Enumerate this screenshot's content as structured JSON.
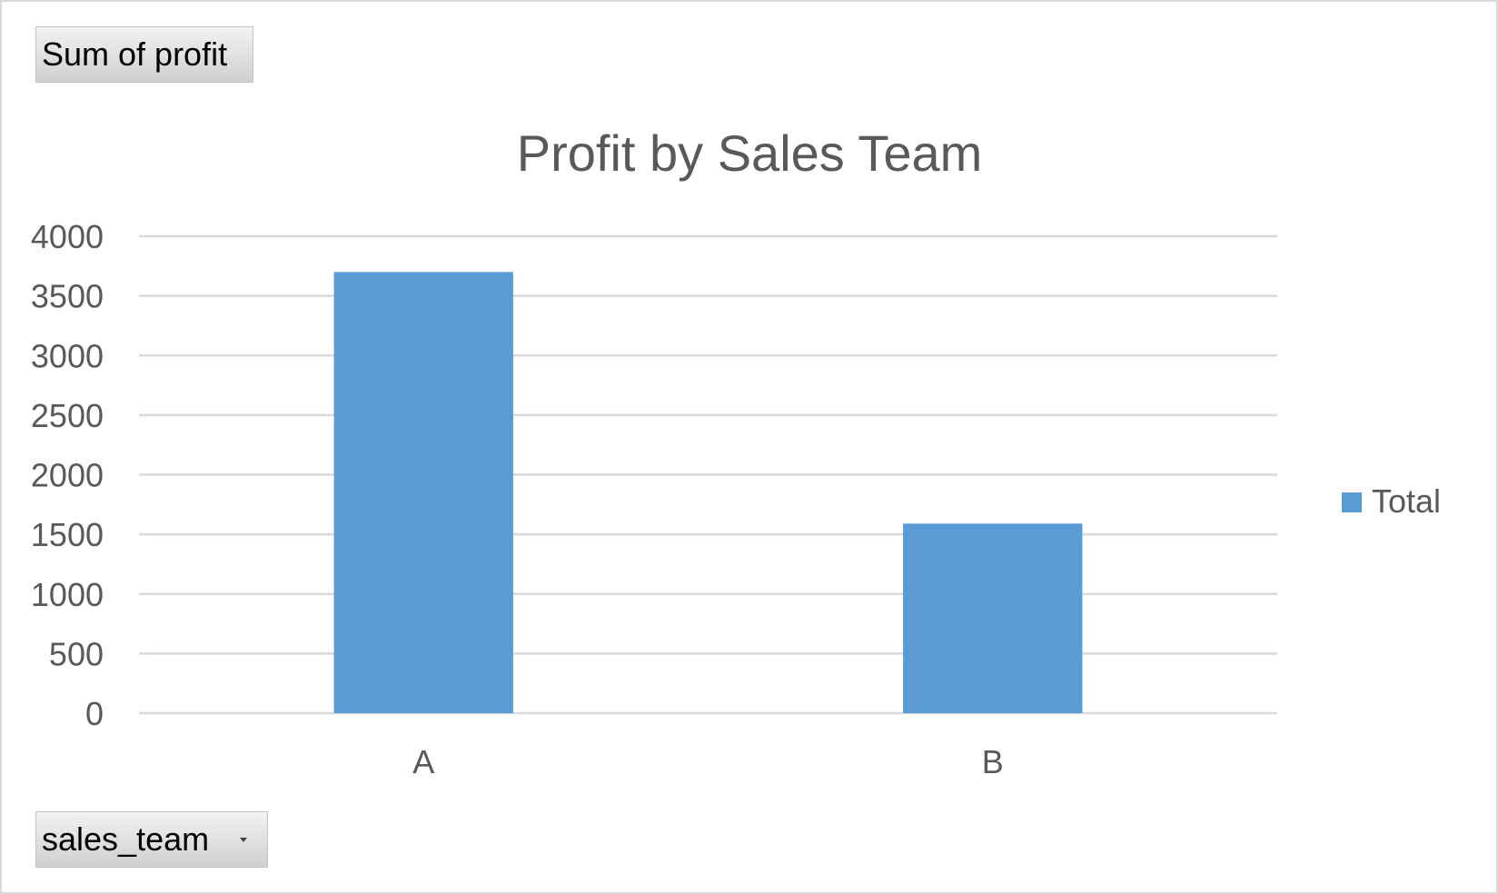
{
  "value_field_button": {
    "label": "Sum of profit"
  },
  "axis_field_button": {
    "label": "sales_team",
    "icon": "chevron-down-icon"
  },
  "colors": {
    "bar": "#5b9bd5",
    "gridline": "#d9d9d9",
    "text": "#595959"
  },
  "chart_data": {
    "type": "bar",
    "title": "Profit by Sales Team",
    "categories": [
      "A",
      "B"
    ],
    "series": [
      {
        "name": "Total",
        "values": [
          3700,
          1590
        ]
      }
    ],
    "ylim": [
      0,
      4000
    ],
    "yticks": [
      0,
      500,
      1000,
      1500,
      2000,
      2500,
      3000,
      3500,
      4000
    ],
    "grid": true,
    "legend_position": "right"
  }
}
